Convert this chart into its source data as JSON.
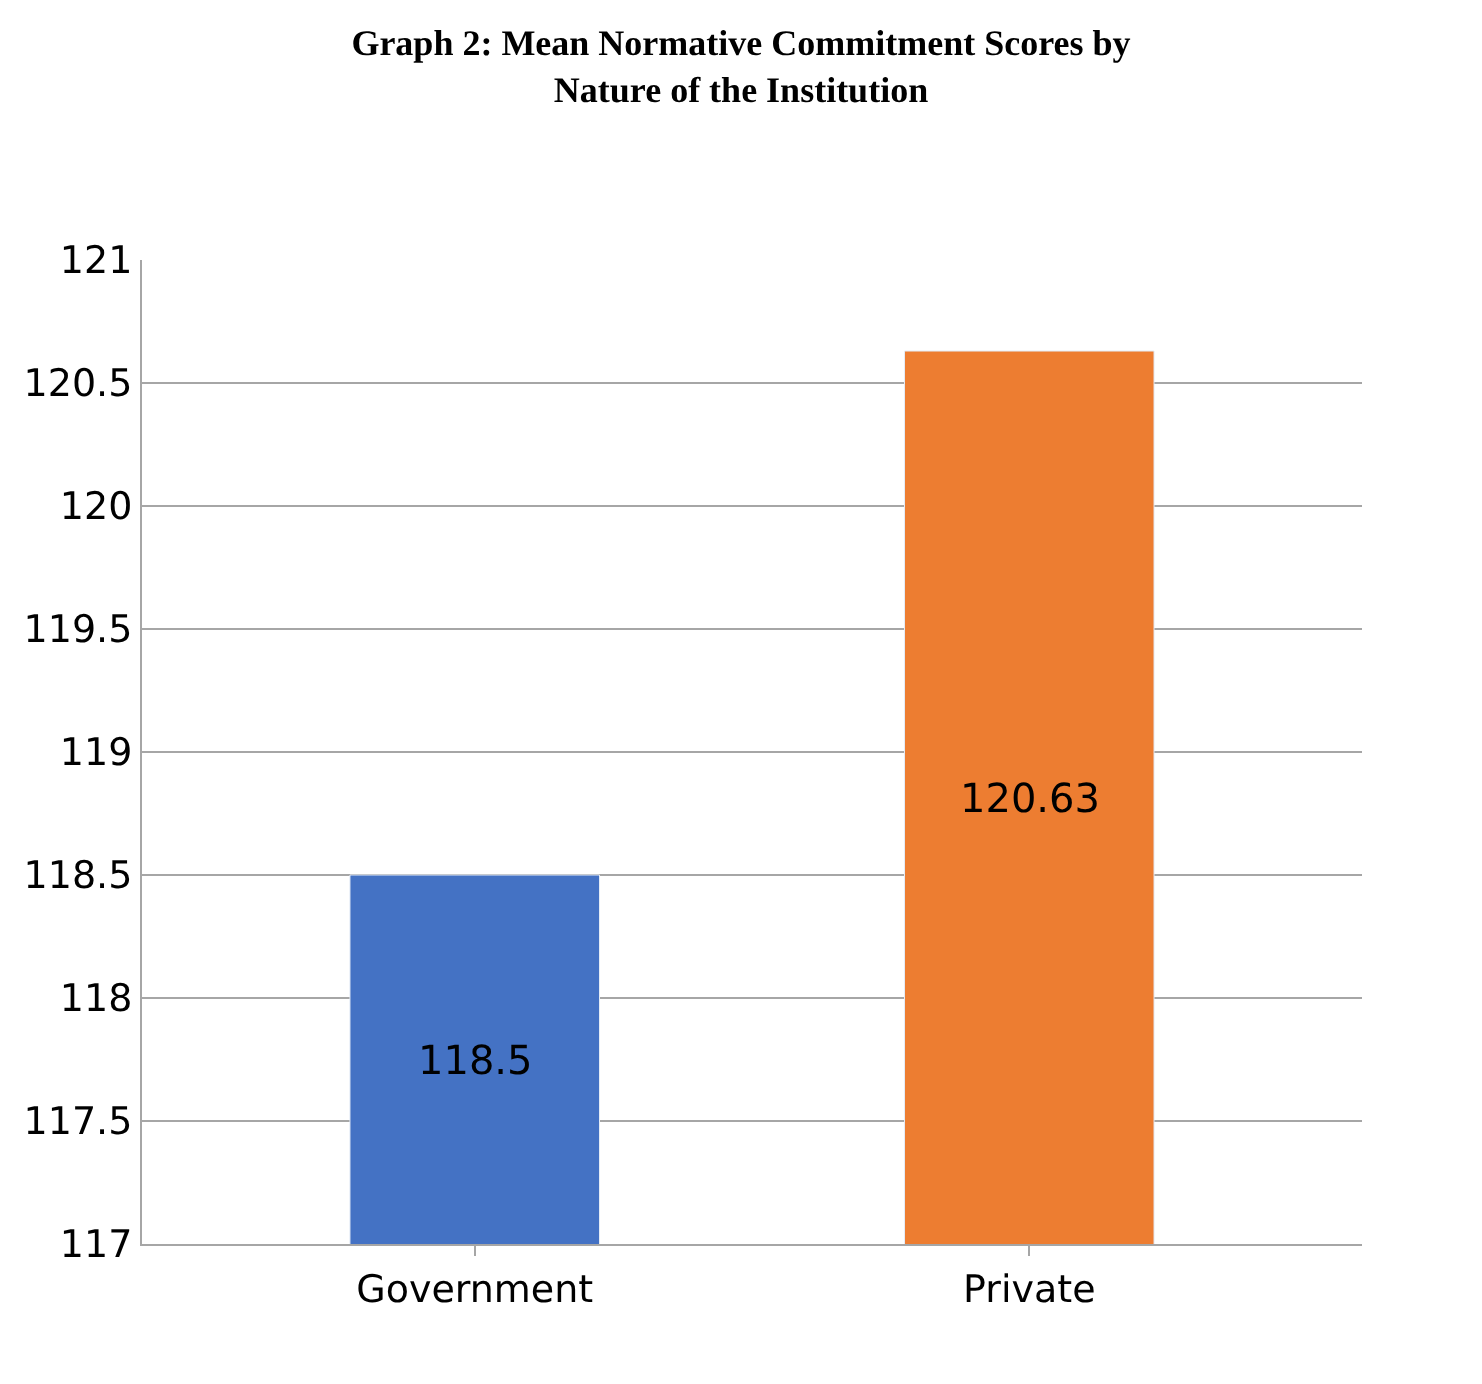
{
  "chart_data": {
    "type": "bar",
    "title": "Graph 2: Mean Normative Commitment Scores by\nNature of the Institution",
    "categories": [
      "Government",
      "Private"
    ],
    "values": [
      118.5,
      120.63
    ],
    "colors": [
      "#4472c4",
      "#ed7d31"
    ],
    "ylim": [
      117,
      121
    ],
    "yticks": [
      117,
      117.5,
      118,
      118.5,
      119,
      119.5,
      120,
      120.5,
      121
    ],
    "grid": "y",
    "data_labels": true
  }
}
